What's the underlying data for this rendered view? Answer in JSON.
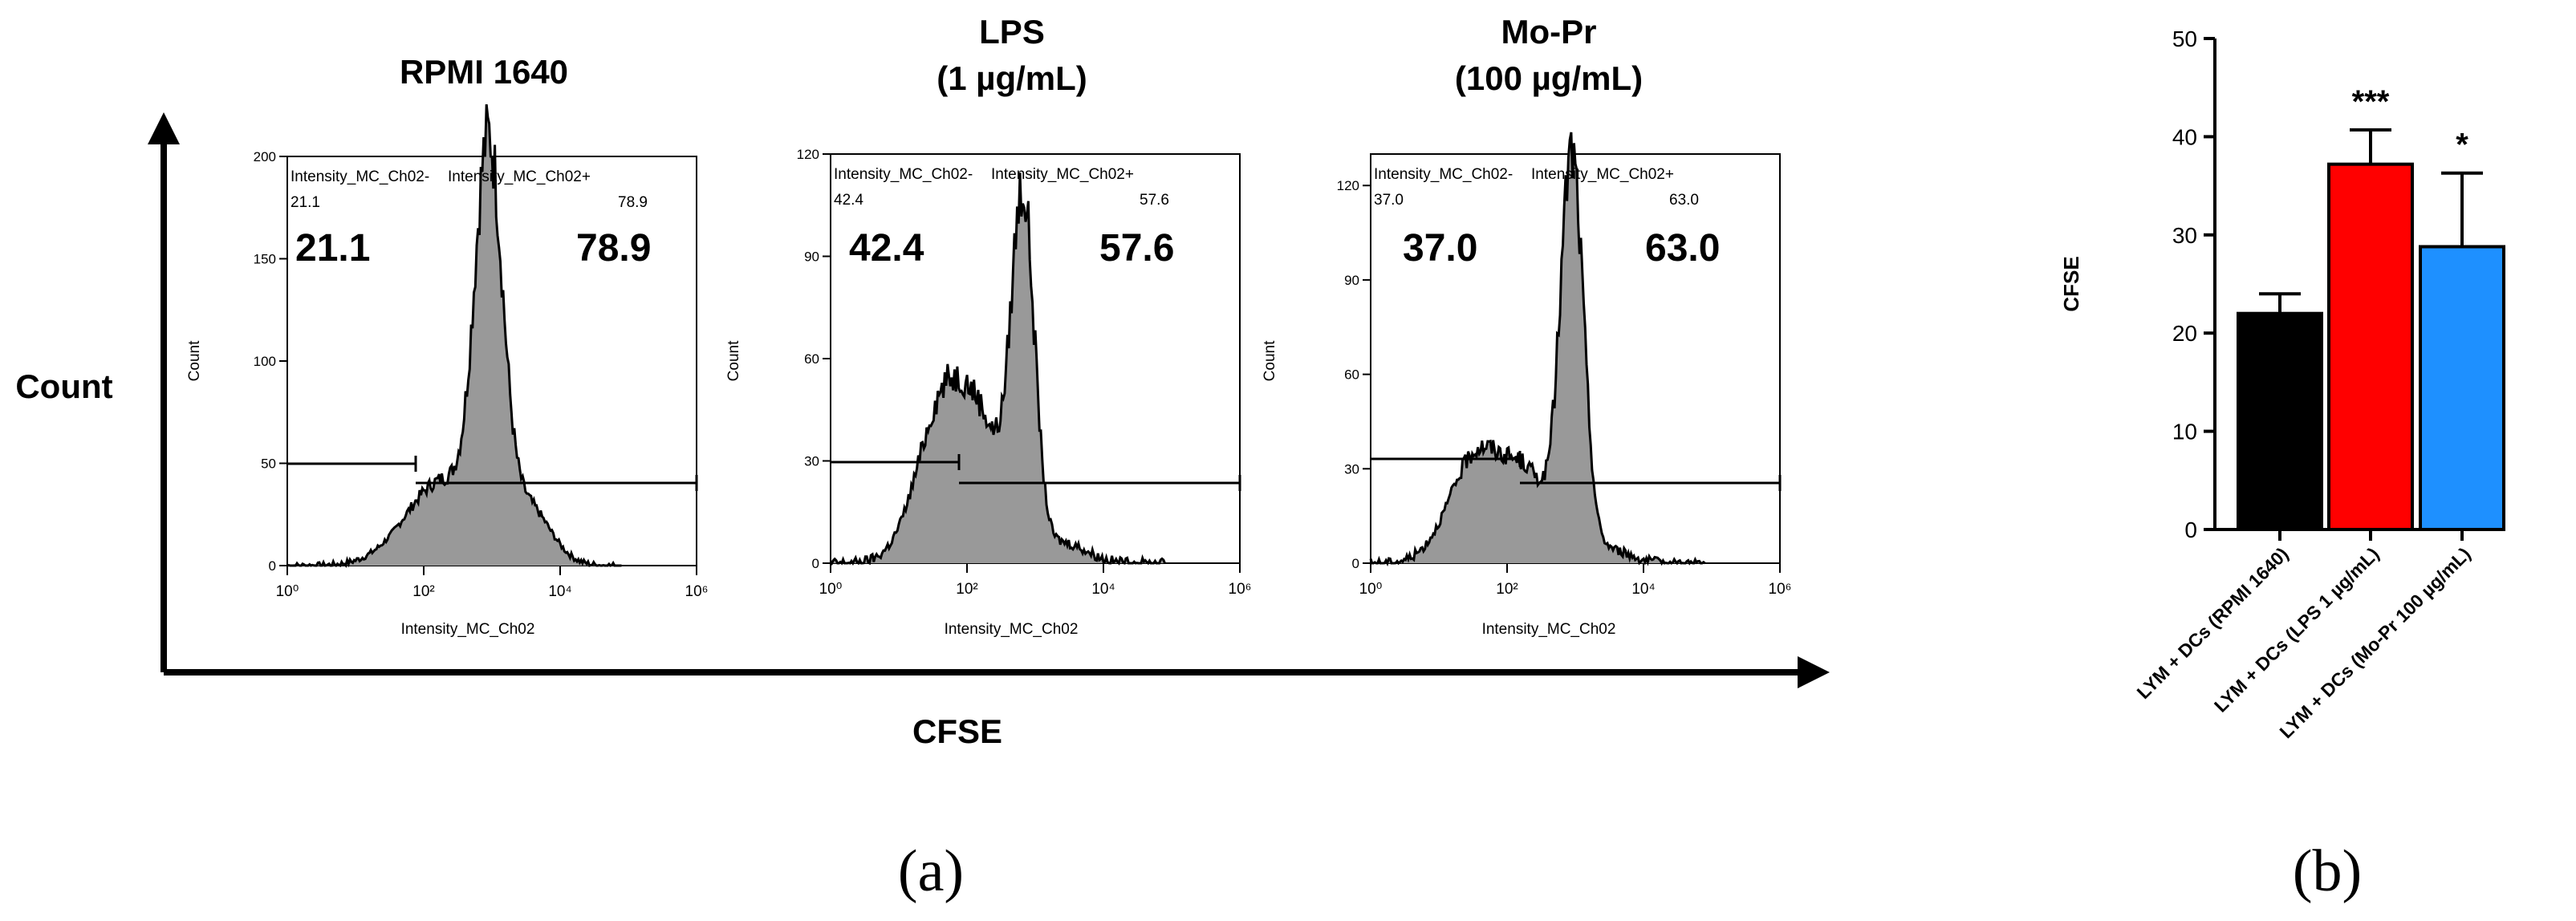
{
  "panel_a": {
    "x_axis_label": "CFSE",
    "y_axis_label": "Count",
    "caption": "(a)"
  },
  "panel_b": {
    "caption": "(b)"
  },
  "chart_data": [
    {
      "type": "histogram",
      "title": "RPMI 1640",
      "xlabel": "Intensity_MC_Ch02",
      "ylabel": "Count",
      "xscale": "log",
      "xlim": [
        1,
        1000000
      ],
      "xticks": [
        "10⁰",
        "10²",
        "10⁴",
        "10⁶"
      ],
      "ylim": [
        0,
        200
      ],
      "yticks": [
        0,
        50,
        100,
        150,
        200
      ],
      "gate_left_label": "Intensity_MC_Ch02-",
      "gate_right_label": "Intensity_MC_Ch02+",
      "gate_left_pct_small": "21.1",
      "gate_right_pct_small": "78.9",
      "gate_left_pct": "21.1",
      "gate_right_pct": "78.9",
      "peaks": [
        {
          "log10_center": 2.95,
          "log10_width": 0.2,
          "count": 182
        },
        {
          "log10_center": 2.3,
          "log10_width": 0.55,
          "count": 42
        },
        {
          "log10_center": 3.5,
          "log10_width": 0.35,
          "count": 28
        }
      ]
    },
    {
      "type": "histogram",
      "title": "LPS",
      "subtitle": "(1 µg/mL)",
      "xlabel": "Intensity_MC_Ch02",
      "ylabel": "Count",
      "xscale": "log",
      "xlim": [
        1,
        1000000
      ],
      "xticks": [
        "10⁰",
        "10²",
        "10⁴",
        "10⁶"
      ],
      "ylim": [
        0,
        120
      ],
      "yticks": [
        0,
        30,
        60,
        90,
        120
      ],
      "gate_left_label": "Intensity_MC_Ch02-",
      "gate_right_label": "Intensity_MC_Ch02+",
      "gate_left_pct_small": "42.4",
      "gate_right_pct_small": "57.6",
      "gate_left_pct": "42.4",
      "gate_right_pct": "57.6",
      "peaks": [
        {
          "log10_center": 2.82,
          "log10_width": 0.17,
          "count": 102
        },
        {
          "log10_center": 1.7,
          "log10_width": 0.4,
          "count": 50
        },
        {
          "log10_center": 2.3,
          "log10_width": 0.3,
          "count": 25
        },
        {
          "log10_center": 3.4,
          "log10_width": 0.35,
          "count": 6
        }
      ]
    },
    {
      "type": "histogram",
      "title": "Mo-Pr",
      "subtitle": "(100 µg/mL)",
      "xlabel": "Intensity_MC_Ch02",
      "ylabel": "Count",
      "xscale": "log",
      "xlim": [
        1,
        1000000
      ],
      "xticks": [
        "10⁰",
        "10²",
        "10⁴",
        "10⁶"
      ],
      "ylim": [
        0,
        130
      ],
      "yticks": [
        0,
        30,
        60,
        90,
        120
      ],
      "gate_left_label": "Intensity_MC_Ch02-",
      "gate_right_label": "Intensity_MC_Ch02+",
      "gate_left_pct_small": "37.0",
      "gate_right_pct_small": "63.0",
      "gate_left_pct": "37.0",
      "gate_right_pct": "63.0",
      "peaks": [
        {
          "log10_center": 2.95,
          "log10_width": 0.17,
          "count": 125
        },
        {
          "log10_center": 1.6,
          "log10_width": 0.42,
          "count": 36
        },
        {
          "log10_center": 2.35,
          "log10_width": 0.3,
          "count": 22
        },
        {
          "log10_center": 3.4,
          "log10_width": 0.35,
          "count": 5
        }
      ]
    },
    {
      "type": "bar",
      "title": "",
      "ylabel": "CFSE",
      "ylim": [
        0,
        50
      ],
      "yticks": [
        0,
        10,
        20,
        30,
        40,
        50
      ],
      "categories": [
        "LYM + DCs (RPMI 1640)",
        "LYM + DCs (LPS 1 µg/mL)",
        "LYM + DCs (Mo-Pr 100 µg/mL)"
      ],
      "values": [
        22,
        37.2,
        28.8
      ],
      "errors": [
        2,
        3.5,
        7.5
      ],
      "colors": [
        "#000000",
        "#ff0000",
        "#1e90ff"
      ],
      "significance": [
        "",
        "***",
        "*"
      ]
    }
  ]
}
